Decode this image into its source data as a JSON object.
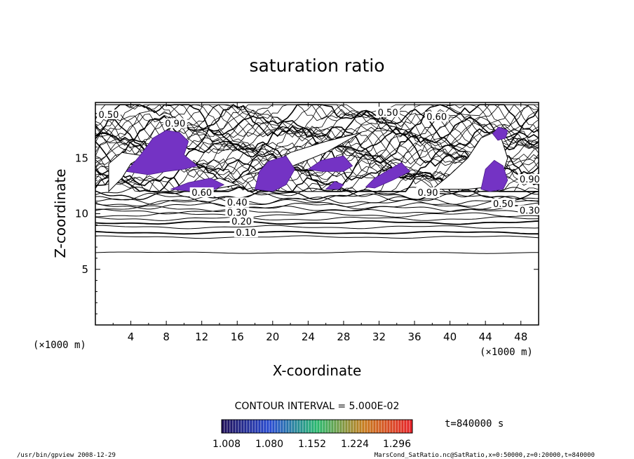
{
  "chart_data": {
    "type": "contour",
    "title": "saturation ratio",
    "xlabel": "X-coordinate",
    "ylabel": "Z-coordinate",
    "x_unit": "(×1000 m)",
    "y_unit": "(×1000 m)",
    "xlim": [
      0,
      50
    ],
    "ylim": [
      0,
      20
    ],
    "x_ticks": [
      "4",
      "8",
      "12",
      "16",
      "20",
      "24",
      "28",
      "32",
      "36",
      "40",
      "44",
      "48"
    ],
    "y_ticks": [
      "5",
      "10",
      "15"
    ],
    "contour_levels": [
      0.1,
      0.2,
      0.3,
      0.4,
      0.5,
      0.6,
      0.8,
      0.9
    ],
    "contour_labels": [
      {
        "text": "0.10",
        "x": 17.0,
        "z": 8.2
      },
      {
        "text": "0.20",
        "x": 16.5,
        "z": 9.2
      },
      {
        "text": "0.30",
        "x": 16.0,
        "z": 10.0
      },
      {
        "text": "0.40",
        "x": 16.0,
        "z": 10.9
      },
      {
        "text": "0.50",
        "x": 1.5,
        "z": 18.8
      },
      {
        "text": "0.50",
        "x": 33.0,
        "z": 19.0
      },
      {
        "text": "0.60",
        "x": 12.0,
        "z": 11.8
      },
      {
        "text": "0.60",
        "x": 38.5,
        "z": 18.6
      },
      {
        "text": "0.90",
        "x": 9.0,
        "z": 18.0
      },
      {
        "text": "0.90",
        "x": 37.5,
        "z": 11.8
      },
      {
        "text": "0.90",
        "x": 49.0,
        "z": 13.0
      },
      {
        "text": "0.50",
        "x": 46.0,
        "z": 10.8
      },
      {
        "text": "0.30",
        "x": 49.0,
        "z": 10.2
      }
    ],
    "shaded_regions_min": 1.0,
    "colorbar_ticks": [
      "1.008",
      "1.080",
      "1.152",
      "1.224",
      "1.296"
    ],
    "contour_interval_text": "CONTOUR INTERVAL = 5.000E-02",
    "time_text": "t=840000 s"
  },
  "footer": {
    "left": "/usr/bin/gpview  2008-12-29",
    "right": "MarsCond_SatRatio.nc@SatRatio,x=0:50000,z=0:20000,t=840000"
  },
  "colors": {
    "purple_fill": "#7433c4",
    "colorbar_low": "#1a0f5c",
    "colorbar_high": "#c02020"
  }
}
